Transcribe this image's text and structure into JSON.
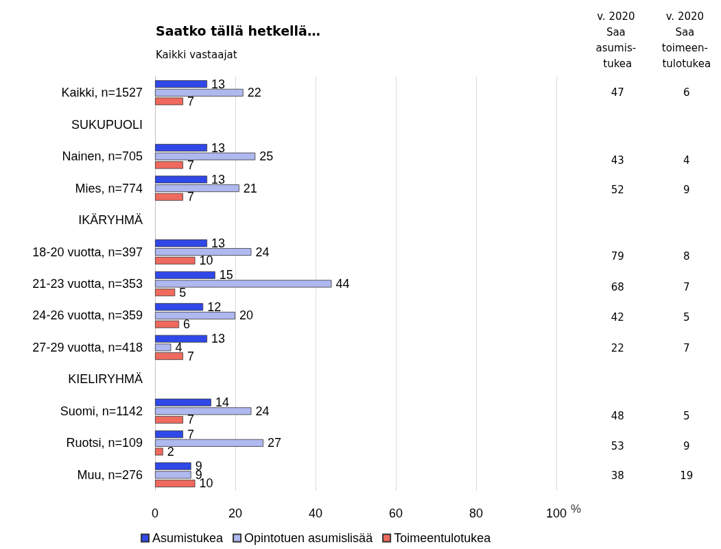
{
  "chart_data": [
    {
      "type": "bar",
      "orientation": "horizontal",
      "title": "Saatko tällä hetkellä…",
      "subtitle": "Kaikki vastaajat",
      "xlabel": "%",
      "categories": [
        "Kaikki, n=1527",
        "SUKUPUOLI",
        "Nainen, n=705",
        "Mies, n=774",
        "IKÄRYHMÄ",
        "18-20 vuotta, n=397",
        "21-23 vuotta, n=353",
        "24-26 vuotta, n=359",
        "27-29 vuotta, n=418",
        "KIELIRYHMÄ",
        "Suomi, n=1142",
        "Ruotsi, n=109",
        "Muu, n=276"
      ],
      "series": [
        {
          "name": "Asumistukea",
          "color": "#3048e8",
          "values": [
            13,
            null,
            13,
            13,
            null,
            13,
            15,
            12,
            13,
            null,
            14,
            7,
            9
          ]
        },
        {
          "name": "Opintotuen asumislisää",
          "color": "#b0b8f0",
          "values": [
            22,
            null,
            25,
            21,
            null,
            24,
            44,
            20,
            4,
            null,
            24,
            27,
            9
          ]
        },
        {
          "name": "Toimeentulotukea",
          "color": "#f06a5e",
          "values": [
            7,
            null,
            7,
            7,
            null,
            10,
            5,
            6,
            7,
            null,
            7,
            2,
            10
          ]
        }
      ],
      "xlim": [
        0,
        100
      ],
      "xticks": [
        0,
        20,
        40,
        60,
        80,
        100
      ],
      "grid": "x",
      "legend": "bottom",
      "data_labels": true
    },
    {
      "type": "other",
      "categories": [
        "v. 2020 Saa asumis- tukea",
        "v. 2020 Saa toimeen- tulotukea"
      ],
      "values": [
        47,
        6
      ],
      "data_labels": true
    },
    {
      "type": "heatmap",
      "categories": [
        null,
        null
      ],
      "y_categories": [
        null,
        null
      ],
      "cells": [
        [
          43,
          4
        ],
        [
          52,
          9
        ]
      ],
      "data_labels": true
    },
    {
      "type": "heatmap",
      "categories": [
        null,
        null
      ],
      "y_categories": [
        null,
        null,
        null,
        null
      ],
      "cells": [
        [
          79,
          8
        ],
        [
          68,
          7
        ],
        [
          42,
          5
        ],
        [
          22,
          7
        ]
      ],
      "data_labels": true
    },
    {
      "type": "heatmap",
      "categories": [
        null,
        null
      ],
      "y_categories": [
        null,
        null,
        null
      ],
      "cells": [
        [
          48,
          5
        ],
        [
          53,
          9
        ],
        [
          38,
          19
        ]
      ],
      "data_labels": true
    }
  ]
}
